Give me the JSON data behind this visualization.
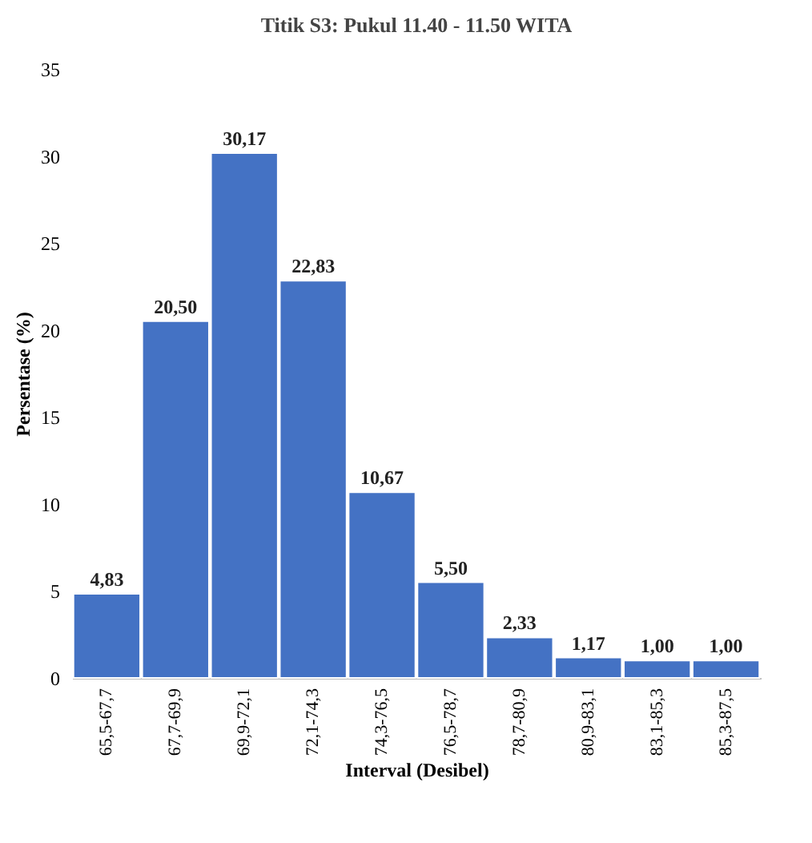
{
  "chart_data": {
    "type": "bar",
    "title": "Titik S3: Pukul 11.40 - 11.50 WITA",
    "xlabel": "Interval (Desibel)",
    "ylabel": "Persentase (%)",
    "categories": [
      "65,5-67,7",
      "67,7-69,9",
      "69,9-72,1",
      "72,1-74,3",
      "74,3-76,5",
      "76,5-78,7",
      "78,7-80,9",
      "80,9-83,1",
      "83,1-85,3",
      "85,3-87,5"
    ],
    "values": [
      4.83,
      20.5,
      30.17,
      22.83,
      10.67,
      5.5,
      2.33,
      1.17,
      1.0,
      1.0
    ],
    "value_labels": [
      "4,83",
      "20,50",
      "30,17",
      "22,83",
      "10,67",
      "5,50",
      "2,33",
      "1,17",
      "1,00",
      "1,00"
    ],
    "color": "#4472c4",
    "ylim": [
      0,
      35
    ],
    "yticks": [
      0,
      5,
      10,
      15,
      20,
      25,
      30,
      35
    ],
    "grid": false
  }
}
